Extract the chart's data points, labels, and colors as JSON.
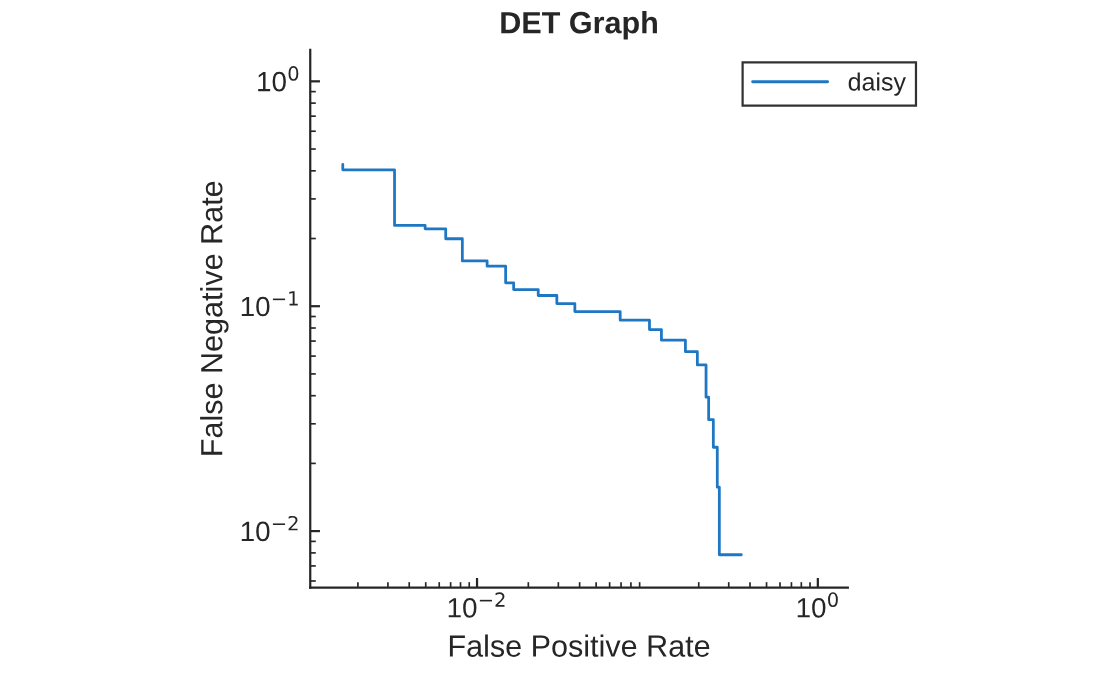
{
  "chart_data": {
    "type": "line",
    "title": "DET Graph",
    "xlabel": "False Positive Rate",
    "ylabel": "False Negative Rate",
    "log": "xy",
    "grid": false,
    "legend": "top right",
    "xlim": [
      0.00105,
      1.5
    ],
    "ylim": [
      0.0056,
      1.38
    ],
    "xticks": [
      {
        "value": 0.01,
        "label": "10$^{−2}$"
      },
      {
        "value": 1,
        "label": "10$^{0}$"
      }
    ],
    "yticks": [
      {
        "value": 0.01,
        "label": "10$^{−2}$"
      },
      {
        "value": 0.1,
        "label": "10$^{−1}$"
      },
      {
        "value": 1,
        "label": "10$^{0}$"
      }
    ],
    "series": [
      {
        "name": "daisy",
        "color": "#1f77c4",
        "x": [
          0.00163,
          0.00163,
          0.00328,
          0.00328,
          0.00496,
          0.00496,
          0.00655,
          0.00655,
          0.0082,
          0.0082,
          0.01146,
          0.01146,
          0.01472,
          0.01472,
          0.0164,
          0.0164,
          0.02286,
          0.02286,
          0.0294,
          0.0294,
          0.0375,
          0.0375,
          0.0692,
          0.0692,
          0.1028,
          0.1028,
          0.1208,
          0.1208,
          0.1671,
          0.1671,
          0.1963,
          0.1963,
          0.2208,
          0.2208,
          0.2287,
          0.2287,
          0.2436,
          0.2436,
          0.257,
          0.257,
          0.2642,
          0.2642,
          0.3556
        ],
        "values": [
          0.427,
          0.404,
          0.404,
          0.2286,
          0.2286,
          0.221,
          0.221,
          0.1995,
          0.1995,
          0.159,
          0.159,
          0.1507,
          0.1507,
          0.127,
          0.127,
          0.1186,
          0.1186,
          0.1116,
          0.1116,
          0.1028,
          0.1028,
          0.0947,
          0.0947,
          0.0867,
          0.0867,
          0.0787,
          0.0787,
          0.0706,
          0.0706,
          0.0628,
          0.0628,
          0.0548,
          0.0548,
          0.0394,
          0.0394,
          0.0313,
          0.0313,
          0.0236,
          0.0236,
          0.01567,
          0.01567,
          0.00785,
          0.00785
        ]
      }
    ]
  }
}
